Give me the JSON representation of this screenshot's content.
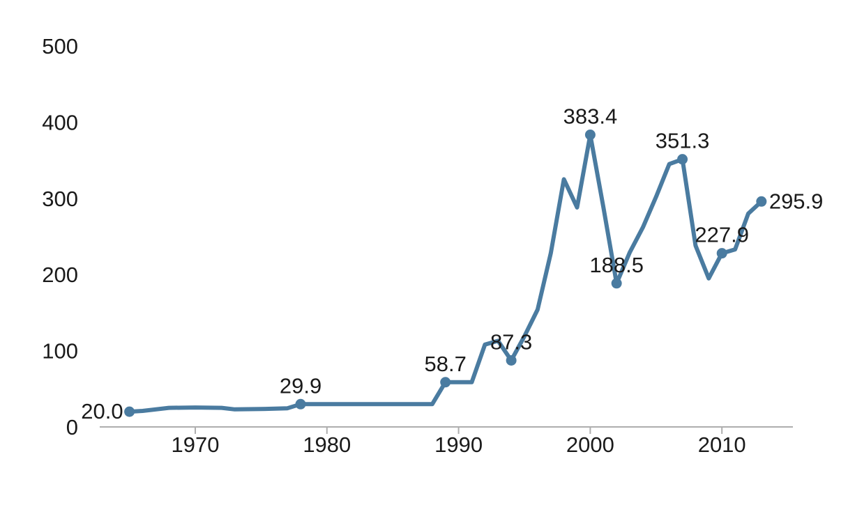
{
  "chart_data": {
    "type": "line",
    "title": "",
    "xlabel": "",
    "ylabel": "",
    "grid": false,
    "legend": "none",
    "line_color": "#4a7ba0",
    "axis_color": "#aeaeae",
    "text_color": "#1a1a1a",
    "x_axis_range_years": [
      1962.7,
      2015.4
    ],
    "ylim": [
      0,
      500
    ],
    "x_ticks": [
      {
        "year": 1970,
        "label": "1970"
      },
      {
        "year": 1980,
        "label": "1980"
      },
      {
        "year": 1990,
        "label": "1990"
      },
      {
        "year": 2000,
        "label": "2000"
      },
      {
        "year": 2010,
        "label": "2010"
      }
    ],
    "y_ticks": [
      {
        "value": 0,
        "label": "0"
      },
      {
        "value": 100,
        "label": "100"
      },
      {
        "value": 200,
        "label": "200"
      },
      {
        "value": 300,
        "label": "300"
      },
      {
        "value": 400,
        "label": "400"
      },
      {
        "value": 500,
        "label": "500"
      }
    ],
    "series": [
      {
        "name": "series-1",
        "points": [
          [
            1965,
            20.0
          ],
          [
            1966,
            21.0
          ],
          [
            1968,
            25.0
          ],
          [
            1970,
            25.5
          ],
          [
            1972,
            25.0
          ],
          [
            1973,
            23.0
          ],
          [
            1975,
            23.5
          ],
          [
            1977,
            24.5
          ],
          [
            1978,
            29.9
          ],
          [
            1988,
            29.9
          ],
          [
            1989,
            58.7
          ],
          [
            1991,
            58.7
          ],
          [
            1992,
            108
          ],
          [
            1993,
            113
          ],
          [
            1994,
            87.3
          ],
          [
            1995,
            119
          ],
          [
            1996,
            154
          ],
          [
            1997,
            228
          ],
          [
            1998,
            325
          ],
          [
            1999,
            288
          ],
          [
            2000,
            383.4
          ],
          [
            2001,
            288
          ],
          [
            2002,
            188.5
          ],
          [
            2003,
            229
          ],
          [
            2004,
            262
          ],
          [
            2005,
            302
          ],
          [
            2006,
            345
          ],
          [
            2007,
            351.3
          ],
          [
            2008,
            238
          ],
          [
            2009,
            195
          ],
          [
            2010,
            227.9
          ],
          [
            2011,
            233
          ],
          [
            2012,
            280
          ],
          [
            2013,
            295.9
          ]
        ]
      }
    ],
    "labeled_points": [
      {
        "year": 1965,
        "value": 20.0,
        "label": "20.0",
        "placement": "left"
      },
      {
        "year": 1978,
        "value": 29.9,
        "label": "29.9",
        "placement": "above"
      },
      {
        "year": 1989,
        "value": 58.7,
        "label": "58.7",
        "placement": "above"
      },
      {
        "year": 1994,
        "value": 87.3,
        "label": "87.3",
        "placement": "above"
      },
      {
        "year": 2000,
        "value": 383.4,
        "label": "383.4",
        "placement": "above"
      },
      {
        "year": 2002,
        "value": 188.5,
        "label": "188.5",
        "placement": "above"
      },
      {
        "year": 2007,
        "value": 351.3,
        "label": "351.3",
        "placement": "above"
      },
      {
        "year": 2010,
        "value": 227.9,
        "label": "227.9",
        "placement": "above"
      },
      {
        "year": 2013,
        "value": 295.9,
        "label": "295.9",
        "placement": "right"
      }
    ]
  }
}
